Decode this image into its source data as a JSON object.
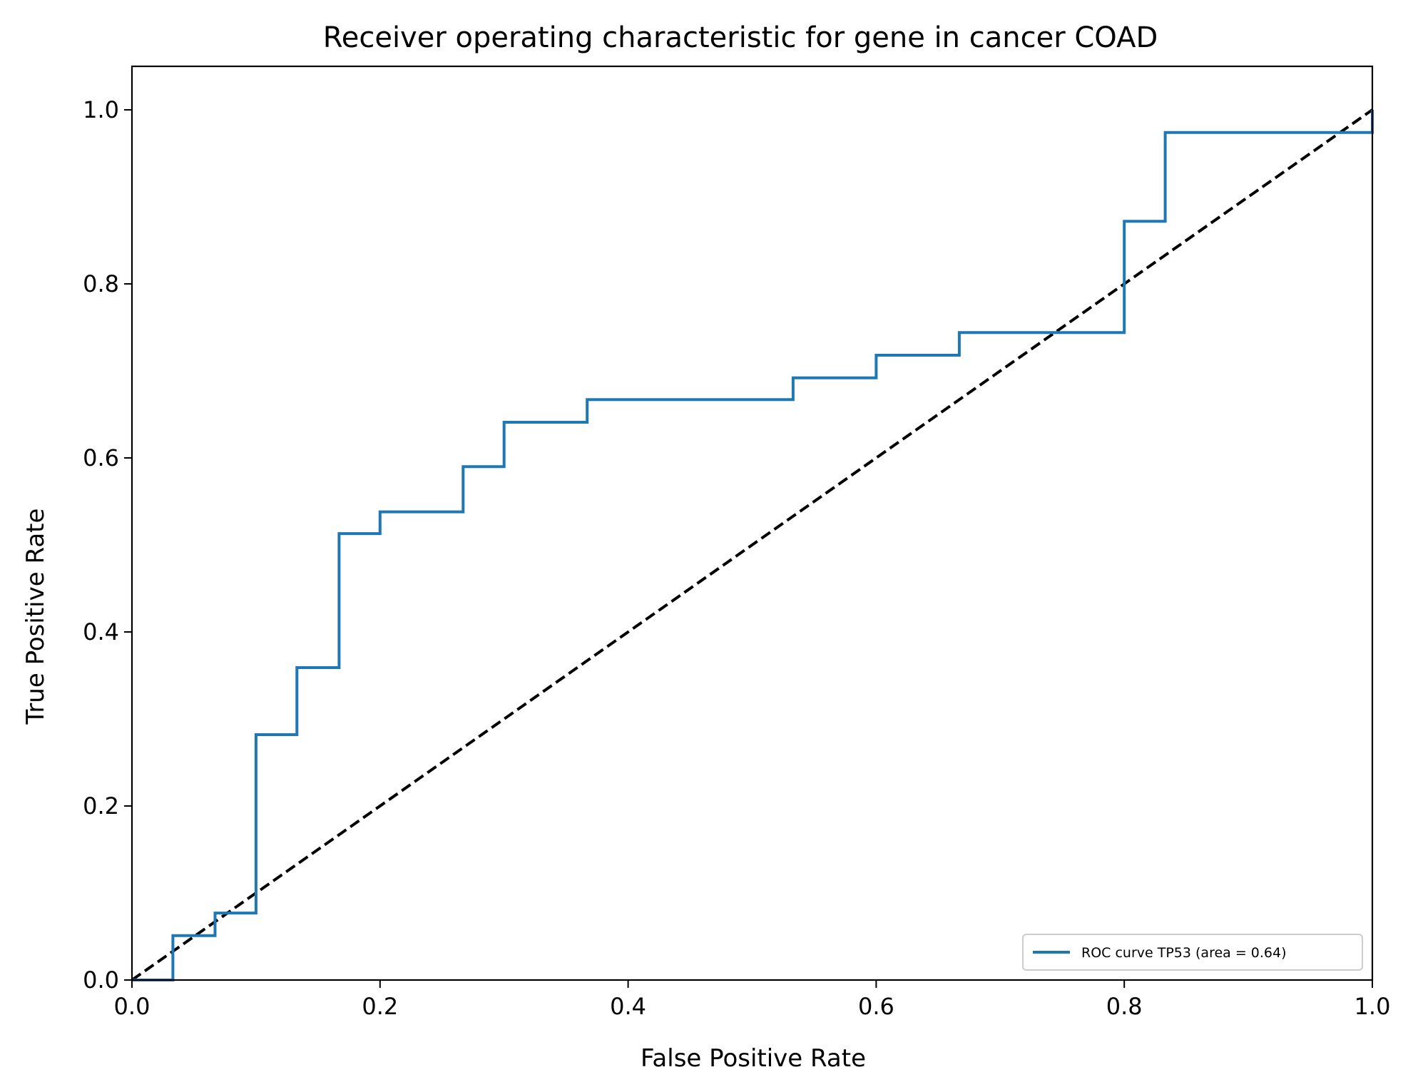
{
  "chart_data": {
    "type": "line",
    "title": "Receiver operating characteristic for gene in cancer COAD",
    "xlabel": "False Positive Rate",
    "ylabel": "True Positive Rate",
    "xlim": [
      0.0,
      1.0
    ],
    "ylim": [
      0.0,
      1.05
    ],
    "x_ticks": [
      "0.0",
      "0.2",
      "0.4",
      "0.6",
      "0.8",
      "1.0"
    ],
    "y_ticks": [
      "0.0",
      "0.2",
      "0.4",
      "0.6",
      "0.8",
      "1.0"
    ],
    "grid": false,
    "legend_position": "lower-right",
    "series": [
      {
        "name": "ROC curve TP53 (area = 0.64)",
        "color": "#1f77b4",
        "style": "solid",
        "x": [
          0.0,
          0.033,
          0.033,
          0.067,
          0.067,
          0.1,
          0.1,
          0.133,
          0.133,
          0.167,
          0.167,
          0.2,
          0.2,
          0.267,
          0.267,
          0.3,
          0.3,
          0.367,
          0.367,
          0.533,
          0.533,
          0.6,
          0.6,
          0.667,
          0.667,
          0.8,
          0.8,
          0.833,
          0.833,
          1.0,
          1.0
        ],
        "y": [
          0.0,
          0.0,
          0.051,
          0.051,
          0.077,
          0.077,
          0.282,
          0.282,
          0.359,
          0.359,
          0.513,
          0.513,
          0.538,
          0.538,
          0.59,
          0.59,
          0.641,
          0.641,
          0.667,
          0.667,
          0.692,
          0.692,
          0.718,
          0.718,
          0.744,
          0.744,
          0.872,
          0.872,
          0.974,
          0.974,
          1.0
        ]
      },
      {
        "color": "#000000",
        "style": "dashed",
        "x": [
          0.0,
          1.0
        ],
        "y": [
          0.0,
          1.0
        ]
      }
    ]
  }
}
